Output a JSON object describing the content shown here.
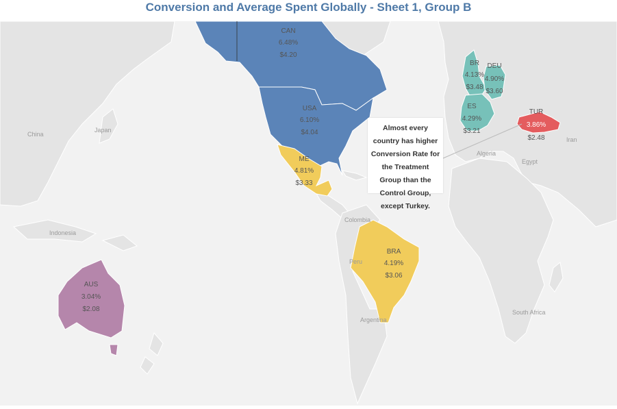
{
  "title": "Conversion and Average Spent Globally - Sheet 1, Group B",
  "annotation": "Almost every country has higher Conversion Rate for the Treatment Group than the Control Group, except Turkey.",
  "colors": {
    "blue": "#5b84b8",
    "yellow": "#f1cc5b",
    "purple": "#b586ab",
    "teal": "#77c1b9",
    "red": "#e45c5e",
    "land": "#e4e4e4",
    "water": "#f2f2f2",
    "title": "#4e79a7"
  },
  "map_data": {
    "countries": [
      {
        "code": "CAN",
        "conversion": "6.48%",
        "avg_spent": "$4.20",
        "color": "#5b84b8"
      },
      {
        "code": "USA",
        "conversion": "6.10%",
        "avg_spent": "$4.04",
        "color": "#5b84b8"
      },
      {
        "code": "MEX",
        "shown_code": "ME",
        "conversion": "4.81%",
        "avg_spent": "$3.33",
        "color": "#f1cc5b"
      },
      {
        "code": "BRA",
        "conversion": "4.19%",
        "avg_spent": "$3.06",
        "color": "#f1cc5b"
      },
      {
        "code": "AUS",
        "conversion": "3.04%",
        "avg_spent": "$2.08",
        "color": "#b586ab"
      },
      {
        "code": "TUR",
        "conversion": "3.86%",
        "avg_spent": "$2.48",
        "color": "#e45c5e"
      },
      {
        "code": "GBR",
        "shown_code": "BR",
        "conversion": "4.13%",
        "avg_spent": "$3.48",
        "color": "#77c1b9"
      },
      {
        "code": "DEU",
        "conversion": "4.90%",
        "avg_spent": "$3.60",
        "color": "#77c1b9"
      },
      {
        "code": "ESP",
        "shown_code": "ES",
        "conversion": "4.29%",
        "avg_spent": "$3.21",
        "color": "#77c1b9"
      }
    ],
    "place_labels": [
      "China",
      "Japan",
      "Indonesia",
      "Colombia",
      "Peru",
      "Argentina",
      "Algeria",
      "Egypt",
      "Iran",
      "South Africa"
    ]
  }
}
